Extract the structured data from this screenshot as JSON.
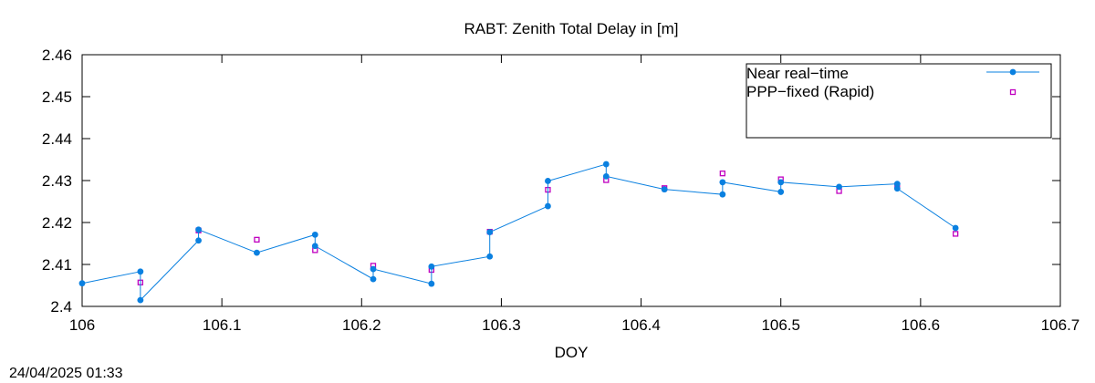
{
  "timestamp": "24/04/2025 01:33",
  "chart_data": {
    "type": "line",
    "title": "RABT: Zenith Total Delay in [m]",
    "xlabel": "DOY",
    "ylabel": "",
    "xlim": [
      106,
      106.7
    ],
    "ylim": [
      2.4,
      2.46
    ],
    "xticks": [
      "106",
      "106.1",
      "106.2",
      "106.3",
      "106.4",
      "106.5",
      "106.6",
      "106.7"
    ],
    "yticks": [
      "2.4",
      "2.41",
      "2.42",
      "2.43",
      "2.44",
      "2.45",
      "2.46"
    ],
    "grid": false,
    "legend": "top-right",
    "series": [
      {
        "name": "Near real−time",
        "style": "linespoints",
        "color": "#0a80e0",
        "points": [
          [
            106.0,
            2.4055
          ],
          [
            106.0417,
            2.4083
          ],
          [
            106.0417,
            2.4015
          ],
          [
            106.0833,
            2.4157
          ],
          [
            106.0833,
            2.4183
          ],
          [
            106.125,
            2.4128
          ],
          [
            106.1667,
            2.4171
          ],
          [
            106.1667,
            2.4144
          ],
          [
            106.2083,
            2.4065
          ],
          [
            106.2083,
            2.4089
          ],
          [
            106.25,
            2.4054
          ],
          [
            106.25,
            2.4095
          ],
          [
            106.2917,
            2.4119
          ],
          [
            106.2917,
            2.4177
          ],
          [
            106.3333,
            2.4239
          ],
          [
            106.3333,
            2.4299
          ],
          [
            106.375,
            2.4339
          ],
          [
            106.375,
            2.431
          ],
          [
            106.4167,
            2.4279
          ],
          [
            106.4583,
            2.4267
          ],
          [
            106.4583,
            2.4296
          ],
          [
            106.5,
            2.4273
          ],
          [
            106.5,
            2.4296
          ],
          [
            106.5417,
            2.4285
          ],
          [
            106.5833,
            2.4292
          ],
          [
            106.5833,
            2.4281
          ],
          [
            106.625,
            2.4187
          ]
        ]
      },
      {
        "name": "PPP−fixed (Rapid)",
        "style": "points",
        "color": "#c000c0",
        "points": [
          [
            106.0417,
            2.4057
          ],
          [
            106.0833,
            2.4181
          ],
          [
            106.125,
            2.4159
          ],
          [
            106.1667,
            2.4134
          ],
          [
            106.2083,
            2.4097
          ],
          [
            106.25,
            2.4087
          ],
          [
            106.2917,
            2.4178
          ],
          [
            106.3333,
            2.4278
          ],
          [
            106.375,
            2.4301
          ],
          [
            106.4167,
            2.4282
          ],
          [
            106.4583,
            2.4317
          ],
          [
            106.5,
            2.4303
          ],
          [
            106.5417,
            2.4275
          ],
          [
            106.5833,
            2.4288
          ],
          [
            106.625,
            2.4173
          ]
        ]
      }
    ]
  }
}
